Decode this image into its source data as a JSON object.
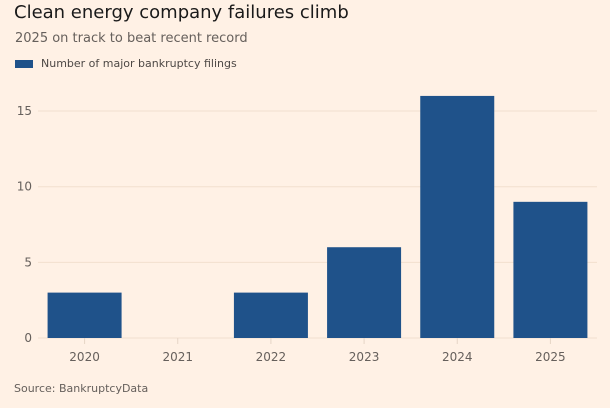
{
  "chart_data": {
    "type": "bar",
    "title": "Clean energy company failures climb",
    "subtitle": "2025 on track to beat recent record",
    "legend": [
      {
        "label": "Number of major bankruptcy filings",
        "color": "#1f528a"
      }
    ],
    "legend_position": "top-left",
    "categories": [
      "2020",
      "2021",
      "2022",
      "2023",
      "2024",
      "2025"
    ],
    "series": [
      {
        "name": "Number of major bankruptcy filings",
        "values": [
          3,
          0,
          3,
          6,
          16,
          9
        ]
      }
    ],
    "xlabel": "",
    "ylabel": "",
    "ylim": [
      0,
      16
    ],
    "yticks": [
      0,
      5,
      10,
      15
    ],
    "grid": true,
    "source": "Source: BankruptcyData"
  }
}
